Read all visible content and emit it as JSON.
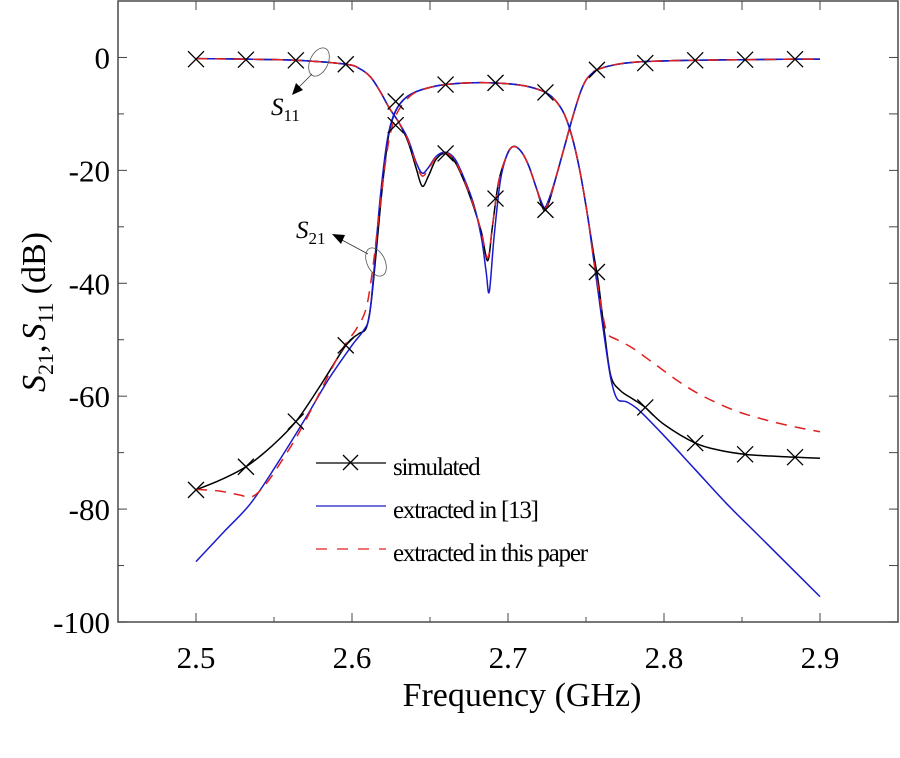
{
  "chart_data": {
    "type": "line",
    "title": "",
    "xlabel": "Frequency (GHz)",
    "ylabel": "S21, S11 (dB)",
    "ylabel_parts": {
      "s": "S",
      "sub21": "21",
      "comma": ",",
      "s2": "S",
      "sub11": "11",
      "unit": "(dB)"
    },
    "xlim": [
      2.45,
      2.95
    ],
    "ylim": [
      -100,
      10
    ],
    "xticks": [
      2.5,
      2.6,
      2.7,
      2.8,
      2.9
    ],
    "xtick_labels": [
      "2.5",
      "2.6",
      "2.7",
      "2.8",
      "2.9"
    ],
    "xminor": [
      2.55,
      2.65,
      2.75,
      2.85
    ],
    "yticks": [
      0,
      -20,
      -40,
      -60,
      -80,
      -100
    ],
    "ytick_labels": [
      "0",
      "-20",
      "-40",
      "-60",
      "-80",
      "-100"
    ],
    "yminor": [
      -10,
      -30,
      -50,
      -70,
      -90
    ],
    "grid": false,
    "legend_position": "bottom-center",
    "legend": [
      {
        "label": "simulated",
        "color": "#000000",
        "style": "solid-x"
      },
      {
        "label": "extracted in [13]",
        "color": "#1a1acc",
        "style": "solid"
      },
      {
        "label": "extracted in this paper",
        "color": "#e02020",
        "style": "dashed"
      }
    ],
    "annotations": [
      {
        "text": "S",
        "sub": "11",
        "target": "S11 curves",
        "at": [
          2.58,
          -1
        ]
      },
      {
        "text": "S",
        "sub": "21",
        "target": "S21 curves",
        "at": [
          2.614,
          -36
        ]
      }
    ],
    "series": [
      {
        "name": "simulated S11",
        "legend": "simulated",
        "color": "#000000",
        "x": [
          2.5,
          2.532,
          2.564,
          2.596,
          2.605,
          2.612,
          2.618,
          2.624,
          2.63,
          2.636,
          2.641,
          2.645,
          2.649,
          2.654,
          2.66,
          2.666,
          2.672,
          2.678,
          2.683,
          2.687,
          2.69,
          2.694,
          2.699,
          2.703,
          2.708,
          2.713,
          2.718,
          2.722,
          2.724,
          2.727,
          2.731,
          2.736,
          2.741,
          2.746,
          2.75,
          2.754,
          2.757,
          2.765,
          2.775,
          2.79,
          2.82,
          2.852,
          2.883,
          2.9
        ],
        "y": [
          -0.2,
          -0.3,
          -0.5,
          -1.2,
          -2.0,
          -3.5,
          -6.0,
          -9.0,
          -11.5,
          -15.0,
          -19.5,
          -22.8,
          -21.0,
          -18.0,
          -17.0,
          -18.5,
          -22.0,
          -26.5,
          -31.0,
          -36.0,
          -30.0,
          -22.0,
          -17.5,
          -15.8,
          -16.5,
          -19.0,
          -23.0,
          -26.5,
          -27.0,
          -25.0,
          -21.0,
          -16.0,
          -11.0,
          -6.5,
          -4.0,
          -2.8,
          -2.2,
          -1.5,
          -1.0,
          -0.7,
          -0.5,
          -0.4,
          -0.3,
          -0.3
        ],
        "markers_x": [
          2.5,
          2.532,
          2.564,
          2.596,
          2.628,
          2.66,
          2.692,
          2.724,
          2.757,
          2.788,
          2.82,
          2.852,
          2.884
        ],
        "markers_y": [
          -0.3,
          -0.4,
          -0.5,
          -1.2,
          -12.0,
          -17.0,
          -25.0,
          -27.0,
          -2.2,
          -1.0,
          -0.5,
          -0.4,
          -0.3
        ]
      },
      {
        "name": "simulated S21",
        "legend": "simulated",
        "color": "#000000",
        "x": [
          2.5,
          2.516,
          2.532,
          2.548,
          2.564,
          2.58,
          2.596,
          2.604,
          2.609,
          2.612,
          2.615,
          2.618,
          2.621,
          2.624,
          2.628,
          2.633,
          2.64,
          2.65,
          2.66,
          2.675,
          2.69,
          2.705,
          2.715,
          2.724,
          2.73,
          2.736,
          2.741,
          2.746,
          2.751,
          2.755,
          2.758,
          2.762,
          2.766,
          2.772,
          2.78,
          2.788,
          2.8,
          2.82,
          2.836,
          2.852,
          2.868,
          2.884,
          2.9
        ],
        "y": [
          -76.6,
          -74.8,
          -72.5,
          -69.0,
          -64.5,
          -58.0,
          -51.0,
          -49.0,
          -48.0,
          -44.0,
          -36.0,
          -27.0,
          -19.0,
          -13.0,
          -9.5,
          -7.5,
          -6.2,
          -5.3,
          -4.8,
          -4.5,
          -4.5,
          -4.8,
          -5.3,
          -6.2,
          -7.5,
          -10.0,
          -14.0,
          -20.0,
          -28.0,
          -35.0,
          -40.0,
          -49.0,
          -56.5,
          -59.0,
          -60.5,
          -62.0,
          -65.0,
          -68.3,
          -69.6,
          -70.3,
          -70.6,
          -70.8,
          -71.0
        ],
        "markers_x": [
          2.5,
          2.532,
          2.564,
          2.596,
          2.628,
          2.66,
          2.692,
          2.724,
          2.757,
          2.788,
          2.82,
          2.852,
          2.884
        ],
        "markers_y": [
          -76.6,
          -72.5,
          -64.5,
          -51.0,
          -7.8,
          -4.8,
          -4.5,
          -6.2,
          -38.0,
          -62.0,
          -68.3,
          -70.3,
          -70.8
        ]
      },
      {
        "name": "extracted in [13] S11",
        "legend": "extracted in [13]",
        "color": "#1a1acc",
        "x": [
          2.5,
          2.532,
          2.564,
          2.596,
          2.605,
          2.612,
          2.618,
          2.624,
          2.63,
          2.636,
          2.641,
          2.645,
          2.649,
          2.654,
          2.66,
          2.666,
          2.672,
          2.678,
          2.683,
          2.686,
          2.688,
          2.691,
          2.695,
          2.699,
          2.703,
          2.708,
          2.713,
          2.718,
          2.722,
          2.724,
          2.727,
          2.731,
          2.736,
          2.741,
          2.746,
          2.75,
          2.754,
          2.757,
          2.765,
          2.775,
          2.79,
          2.82,
          2.852,
          2.883,
          2.9
        ],
        "y": [
          -0.2,
          -0.3,
          -0.5,
          -1.2,
          -2.0,
          -3.5,
          -6.0,
          -9.0,
          -11.5,
          -14.5,
          -18.5,
          -20.5,
          -19.5,
          -17.5,
          -16.8,
          -18.0,
          -21.5,
          -26.0,
          -32.0,
          -38.0,
          -41.5,
          -32.0,
          -22.0,
          -17.5,
          -15.8,
          -16.5,
          -19.0,
          -23.0,
          -26.0,
          -26.5,
          -24.5,
          -21.0,
          -16.0,
          -11.0,
          -6.5,
          -4.0,
          -2.8,
          -2.2,
          -1.5,
          -1.0,
          -0.7,
          -0.5,
          -0.4,
          -0.3,
          -0.3
        ]
      },
      {
        "name": "extracted in [13] S21",
        "legend": "extracted in [13]",
        "color": "#1a1acc",
        "x": [
          2.5,
          2.518,
          2.535,
          2.552,
          2.57,
          2.585,
          2.6,
          2.607,
          2.611,
          2.614,
          2.617,
          2.62,
          2.623,
          2.627,
          2.633,
          2.64,
          2.65,
          2.66,
          2.675,
          2.69,
          2.705,
          2.715,
          2.724,
          2.73,
          2.736,
          2.741,
          2.746,
          2.751,
          2.755,
          2.758,
          2.762,
          2.766,
          2.77,
          2.776,
          2.784,
          2.8,
          2.82,
          2.84,
          2.86,
          2.88,
          2.9
        ],
        "y": [
          -89.3,
          -84.0,
          -79.0,
          -72.0,
          -64.0,
          -57.0,
          -51.0,
          -48.5,
          -46.0,
          -38.0,
          -28.0,
          -20.0,
          -14.0,
          -10.0,
          -7.5,
          -6.2,
          -5.3,
          -4.8,
          -4.5,
          -4.5,
          -4.8,
          -5.3,
          -6.2,
          -7.5,
          -10.0,
          -14.0,
          -20.0,
          -28.0,
          -36.0,
          -42.0,
          -50.0,
          -57.0,
          -60.5,
          -61.0,
          -62.5,
          -67.0,
          -73.0,
          -79.0,
          -84.5,
          -90.0,
          -95.5
        ]
      },
      {
        "name": "extracted in this paper S11",
        "legend": "extracted in this paper",
        "color": "#e02020",
        "x": [
          2.5,
          2.532,
          2.564,
          2.596,
          2.605,
          2.612,
          2.618,
          2.624,
          2.63,
          2.636,
          2.641,
          2.645,
          2.649,
          2.654,
          2.66,
          2.666,
          2.672,
          2.678,
          2.683,
          2.687,
          2.69,
          2.694,
          2.699,
          2.703,
          2.708,
          2.713,
          2.718,
          2.722,
          2.724,
          2.727,
          2.731,
          2.736,
          2.741,
          2.746,
          2.75,
          2.754,
          2.757,
          2.765,
          2.775,
          2.79,
          2.82,
          2.852,
          2.883,
          2.9
        ],
        "y": [
          -0.2,
          -0.3,
          -0.5,
          -1.2,
          -2.0,
          -3.5,
          -6.0,
          -9.0,
          -11.5,
          -14.7,
          -18.8,
          -21.0,
          -19.8,
          -17.6,
          -16.9,
          -18.3,
          -21.8,
          -26.3,
          -31.0,
          -35.5,
          -30.0,
          -22.0,
          -17.5,
          -15.8,
          -16.5,
          -19.0,
          -23.0,
          -26.3,
          -26.8,
          -24.8,
          -21.0,
          -16.0,
          -11.0,
          -6.5,
          -4.0,
          -2.8,
          -2.2,
          -1.5,
          -1.0,
          -0.7,
          -0.5,
          -0.4,
          -0.3,
          -0.3
        ]
      },
      {
        "name": "extracted in this paper S21",
        "legend": "extracted in this paper",
        "color": "#e02020",
        "x": [
          2.5,
          2.515,
          2.528,
          2.536,
          2.545,
          2.556,
          2.567,
          2.58,
          2.593,
          2.603,
          2.609,
          2.613,
          2.616,
          2.619,
          2.622,
          2.625,
          2.629,
          2.634,
          2.64,
          2.65,
          2.66,
          2.675,
          2.69,
          2.705,
          2.715,
          2.724,
          2.73,
          2.736,
          2.741,
          2.746,
          2.751,
          2.755,
          2.758,
          2.761,
          2.764,
          2.77,
          2.78,
          2.795,
          2.81,
          2.825,
          2.845,
          2.865,
          2.885,
          2.9
        ],
        "y": [
          -76.5,
          -76.8,
          -77.5,
          -77.8,
          -75.5,
          -71.0,
          -66.0,
          -59.0,
          -52.0,
          -48.0,
          -44.5,
          -38.0,
          -31.0,
          -24.0,
          -17.5,
          -13.0,
          -9.8,
          -7.8,
          -6.3,
          -5.3,
          -4.8,
          -4.5,
          -4.5,
          -4.8,
          -5.3,
          -6.2,
          -7.5,
          -10.0,
          -14.0,
          -20.0,
          -28.0,
          -36.0,
          -41.0,
          -46.0,
          -49.0,
          -50.0,
          -51.5,
          -54.5,
          -57.5,
          -60.0,
          -62.5,
          -64.2,
          -65.5,
          -66.3
        ]
      }
    ]
  }
}
